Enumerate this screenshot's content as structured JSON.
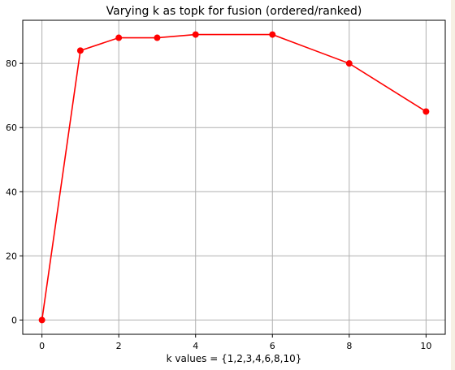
{
  "chart_data": {
    "type": "line",
    "title": "Varying k as topk for fusion (ordered/ranked)",
    "xlabel": "k values = {1,2,3,4,6,8,10}",
    "ylabel": "",
    "xlim": [
      -0.5,
      10.5
    ],
    "ylim": [
      -4.45,
      93.45
    ],
    "xticks": [
      0,
      2,
      4,
      6,
      8,
      10
    ],
    "yticks": [
      0,
      20,
      40,
      60,
      80
    ],
    "grid": true,
    "series": [
      {
        "color": "#ff0000",
        "marker": "circle",
        "x": [
          0,
          1,
          2,
          3,
          4,
          6,
          8,
          10
        ],
        "y": [
          0,
          84,
          88,
          88,
          89,
          89,
          80,
          65
        ]
      }
    ]
  }
}
